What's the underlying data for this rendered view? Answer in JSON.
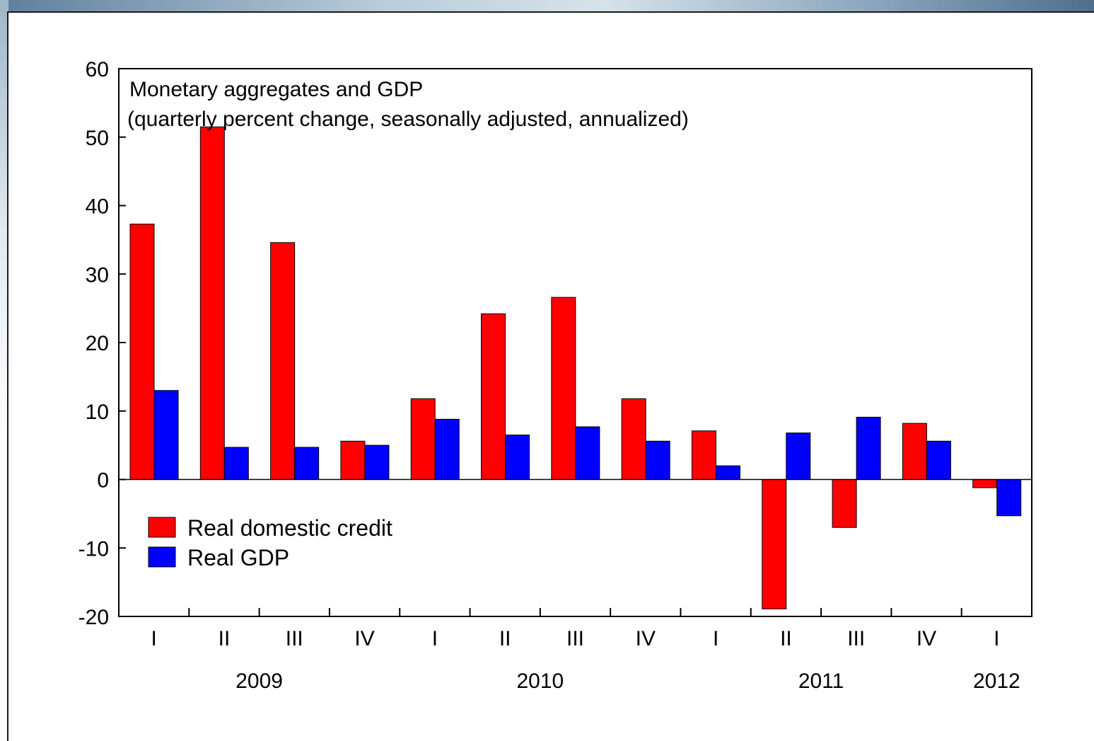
{
  "chart_data": {
    "type": "bar",
    "title": "Monetary aggregates and GDP",
    "subtitle": "(quarterly percent change, seasonally adjusted, annualized)",
    "categories": [
      "I",
      "II",
      "III",
      "IV",
      "I",
      "II",
      "III",
      "IV",
      "I",
      "II",
      "III",
      "IV",
      "I"
    ],
    "years": [
      {
        "label": "2009",
        "start": 0,
        "end": 3
      },
      {
        "label": "2010",
        "start": 4,
        "end": 7
      },
      {
        "label": "2011",
        "start": 8,
        "end": 11
      },
      {
        "label": "2012",
        "start": 12,
        "end": 12
      }
    ],
    "series": [
      {
        "name": "Real domestic credit",
        "color": "#ff0000",
        "values": [
          37.3,
          51.5,
          34.6,
          5.6,
          11.8,
          24.2,
          26.6,
          11.8,
          7.1,
          -18.9,
          -7.0,
          8.2,
          -1.2
        ]
      },
      {
        "name": "Real GDP",
        "color": "#0000ff",
        "values": [
          13.0,
          4.7,
          4.7,
          5.0,
          8.8,
          6.5,
          7.7,
          5.6,
          2.0,
          6.8,
          9.1,
          5.6,
          -5.3
        ]
      }
    ],
    "ylim": [
      -20,
      60
    ],
    "yticks": [
      "-20",
      "-10",
      "0",
      "10",
      "20",
      "30",
      "40",
      "50",
      "60"
    ],
    "legend_position": "lower-left",
    "grid": false
  }
}
